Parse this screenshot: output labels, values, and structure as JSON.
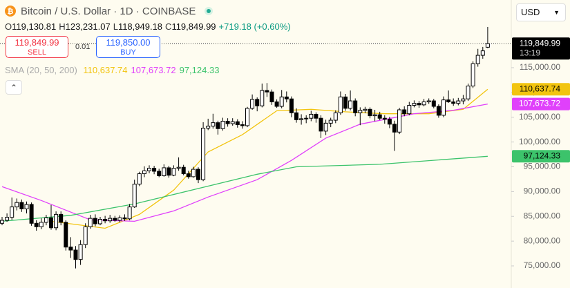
{
  "chart_data": {
    "type": "candlestick",
    "title": "Bitcoin / U.S. Dollar · 1D · COINBASE",
    "currency": "USD",
    "header": [
      {
        "label": "O",
        "value": "119,130.81"
      },
      {
        "label": "H",
        "value": "123,231.07"
      },
      {
        "label": "L",
        "value": "118,949.18"
      },
      {
        "label": "C",
        "value": "119,849.99"
      }
    ],
    "change": "+719.18 (+0.60%)",
    "change_color": "#089981",
    "trade": {
      "sell_price": "119,849.99",
      "sell_label": "SELL",
      "quantity": "0.01",
      "buy_price": "119,850.00",
      "buy_label": "BUY"
    },
    "last_price_label": "119,849.99",
    "countdown": "13:19",
    "up_color": "#ffffff",
    "down_color": "#000000",
    "border_color": "#000000",
    "ylim": [
      70540,
      128660
    ],
    "yticks": [
      {
        "value": 75000,
        "label": "75,000.00"
      },
      {
        "value": 80000,
        "label": "80,000.00"
      },
      {
        "value": 85000,
        "label": "85,000.00"
      },
      {
        "value": 90000,
        "label": "90,000.00"
      },
      {
        "value": 95000,
        "label": "95,000.00"
      },
      {
        "value": 100000,
        "label": "100,000.00"
      },
      {
        "value": 105000,
        "label": "105,000.00"
      },
      {
        "value": 110000,
        "label": "110,000.00"
      },
      {
        "value": 115000,
        "label": "115,000.00"
      }
    ],
    "candles": [
      [
        83600,
        84900,
        83200,
        84200
      ],
      [
        84200,
        85600,
        83900,
        84800
      ],
      [
        84800,
        88800,
        84300,
        86900
      ],
      [
        86900,
        88600,
        86200,
        87800
      ],
      [
        87800,
        88400,
        85900,
        86500
      ],
      [
        86500,
        88000,
        85600,
        87400
      ],
      [
        87400,
        87800,
        83100,
        83600
      ],
      [
        83600,
        84200,
        82100,
        82900
      ],
      [
        82900,
        84600,
        82400,
        83800
      ],
      [
        83800,
        85300,
        83200,
        84700
      ],
      [
        84700,
        87300,
        82300,
        82700
      ],
      [
        82700,
        86000,
        82200,
        85400
      ],
      [
        85400,
        86000,
        83200,
        83800
      ],
      [
        83800,
        84200,
        78100,
        78800
      ],
      [
        78800,
        80800,
        76600,
        78200
      ],
      [
        78200,
        79000,
        74500,
        76300
      ],
      [
        76300,
        80200,
        75200,
        79300
      ],
      [
        79300,
        83600,
        78600,
        82900
      ],
      [
        82900,
        85300,
        82500,
        84600
      ],
      [
        84600,
        85400,
        83000,
        83500
      ],
      [
        83500,
        84900,
        83200,
        84400
      ],
      [
        84400,
        85100,
        83600,
        84100
      ],
      [
        84100,
        85300,
        83700,
        84600
      ],
      [
        84600,
        85100,
        83900,
        84200
      ],
      [
        84200,
        85200,
        83800,
        84700
      ],
      [
        84700,
        85400,
        84100,
        84500
      ],
      [
        84500,
        87500,
        84200,
        86900
      ],
      [
        86900,
        92400,
        86700,
        91500
      ],
      [
        91500,
        94000,
        91100,
        93600
      ],
      [
        93600,
        95100,
        92900,
        94200
      ],
      [
        94200,
        95300,
        93700,
        94700
      ],
      [
        94700,
        95200,
        93500,
        94100
      ],
      [
        94100,
        94600,
        92900,
        93200
      ],
      [
        93200,
        95500,
        93000,
        94800
      ],
      [
        94800,
        95200,
        92800,
        93300
      ],
      [
        93300,
        95300,
        93100,
        94700
      ],
      [
        94700,
        96900,
        94200,
        94900
      ],
      [
        94900,
        95400,
        93300,
        93600
      ],
      [
        93600,
        94200,
        92600,
        93000
      ],
      [
        93000,
        95000,
        92800,
        94500
      ],
      [
        94500,
        94900,
        91700,
        92400
      ],
      [
        92400,
        104000,
        92100,
        102800
      ],
      [
        102800,
        104700,
        102400,
        103200
      ],
      [
        103200,
        105700,
        102700,
        103900
      ],
      [
        103900,
        104300,
        101500,
        102700
      ],
      [
        102700,
        104900,
        102300,
        104200
      ],
      [
        104200,
        104800,
        103100,
        103700
      ],
      [
        103700,
        104800,
        103300,
        104100
      ],
      [
        104100,
        104600,
        102900,
        103500
      ],
      [
        103500,
        104200,
        102700,
        103300
      ],
      [
        103300,
        107100,
        103000,
        106800
      ],
      [
        106800,
        109600,
        106500,
        108600
      ],
      [
        108600,
        109000,
        106200,
        107300
      ],
      [
        107300,
        111800,
        107000,
        110400
      ],
      [
        110400,
        111900,
        109100,
        110100
      ],
      [
        110100,
        110600,
        107500,
        108100
      ],
      [
        108100,
        108600,
        106900,
        107200
      ],
      [
        107200,
        110500,
        106800,
        109100
      ],
      [
        109100,
        110200,
        108000,
        108700
      ],
      [
        108700,
        109200,
        105000,
        105900
      ],
      [
        105900,
        106800,
        103900,
        104500
      ],
      [
        104500,
        105600,
        103500,
        104700
      ],
      [
        104700,
        105400,
        103800,
        104800
      ],
      [
        104800,
        106300,
        104200,
        105600
      ],
      [
        105600,
        106000,
        103900,
        104800
      ],
      [
        104800,
        105400,
        100800,
        102200
      ],
      [
        102200,
        104500,
        101400,
        103800
      ],
      [
        103800,
        104900,
        103000,
        104400
      ],
      [
        104400,
        106400,
        103800,
        105900
      ],
      [
        105900,
        110200,
        105500,
        109100
      ],
      [
        109100,
        109700,
        106300,
        106800
      ],
      [
        106800,
        110400,
        106400,
        108300
      ],
      [
        108300,
        108800,
        105200,
        105900
      ],
      [
        105900,
        107000,
        103400,
        106400
      ],
      [
        106400,
        107100,
        105800,
        106600
      ],
      [
        106600,
        107000,
        104800,
        105300
      ],
      [
        105300,
        106500,
        104200,
        105500
      ],
      [
        105500,
        106100,
        104400,
        104800
      ],
      [
        104800,
        105400,
        103700,
        104600
      ],
      [
        104600,
        105100,
        102800,
        103600
      ],
      [
        103600,
        104300,
        98200,
        102000
      ],
      [
        102000,
        106900,
        101600,
        106500
      ],
      [
        106500,
        107200,
        105200,
        105700
      ],
      [
        105700,
        108100,
        105400,
        107400
      ],
      [
        107400,
        108400,
        107000,
        107800
      ],
      [
        107800,
        108300,
        106900,
        107500
      ],
      [
        107500,
        108700,
        107200,
        108100
      ],
      [
        108100,
        108800,
        107700,
        108300
      ],
      [
        108300,
        108700,
        106800,
        107200
      ],
      [
        107200,
        107600,
        104900,
        105400
      ],
      [
        105400,
        109200,
        105000,
        108500
      ],
      [
        108500,
        110400,
        107900,
        108100
      ],
      [
        108100,
        108800,
        107300,
        107800
      ],
      [
        107800,
        108900,
        107400,
        108300
      ],
      [
        108300,
        109500,
        107600,
        108700
      ],
      [
        108700,
        111800,
        108300,
        111300
      ],
      [
        111300,
        116300,
        110900,
        115800
      ],
      [
        115800,
        118800,
        115200,
        117500
      ],
      [
        117500,
        119200,
        116800,
        118400
      ],
      [
        119130.81,
        123231.07,
        118949.18,
        119849.99
      ]
    ],
    "indicator": {
      "name": "SMA (20, 50, 200)",
      "series": [
        {
          "name": "SMA 20",
          "color": "#f2c40f",
          "legend_value": "110,637.74",
          "x": [
            10,
            21,
            28,
            35,
            42,
            49,
            56,
            63,
            70,
            78,
            87,
            94,
            99
          ],
          "values": [
            84000,
            82600,
            85400,
            90300,
            98000,
            101500,
            106300,
            106600,
            106100,
            105700,
            105700,
            106600,
            110637.74
          ]
        },
        {
          "name": "SMA 50",
          "color": "#e040fb",
          "legend_value": "107,673.72",
          "x": [
            0,
            8,
            18,
            27,
            35,
            42,
            52,
            59,
            66,
            73,
            84,
            92,
            99
          ],
          "values": [
            91000,
            88200,
            84300,
            84000,
            86100,
            88900,
            92400,
            96300,
            100800,
            103600,
            105700,
            106400,
            107673.72
          ]
        },
        {
          "name": "SMA 200",
          "color": "#3cc36b",
          "legend_value": "97,124.33",
          "x": [
            0,
            14,
            27,
            52,
            60,
            77,
            99
          ],
          "values": [
            84000,
            85200,
            87500,
            93500,
            95000,
            95500,
            97124.33
          ]
        }
      ]
    }
  }
}
